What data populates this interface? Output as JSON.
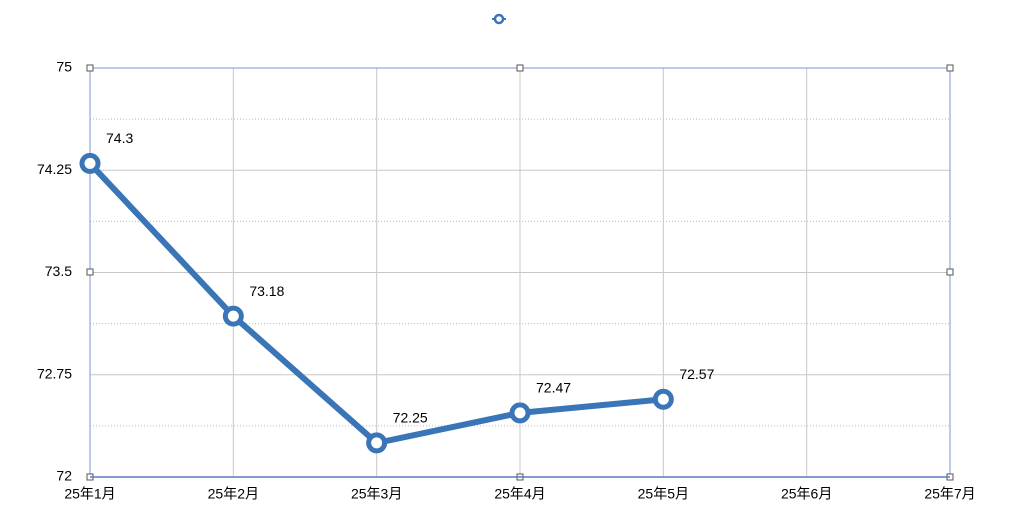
{
  "chart_data": {
    "type": "line",
    "categories": [
      "25年1月",
      "25年2月",
      "25年3月",
      "25年4月",
      "25年5月",
      "25年6月",
      "25年7月"
    ],
    "series": [
      {
        "color": "#3a75b8",
        "values": [
          74.3,
          73.18,
          72.25,
          72.47,
          72.57,
          null,
          null
        ]
      }
    ],
    "ylim": [
      72,
      75
    ],
    "yticks": [
      72,
      72.75,
      73.5,
      74.25,
      75
    ],
    "minor_yticks": [
      72.375,
      73.125,
      73.875,
      74.625
    ],
    "grid": true,
    "data_labels": true,
    "legend": "top"
  }
}
